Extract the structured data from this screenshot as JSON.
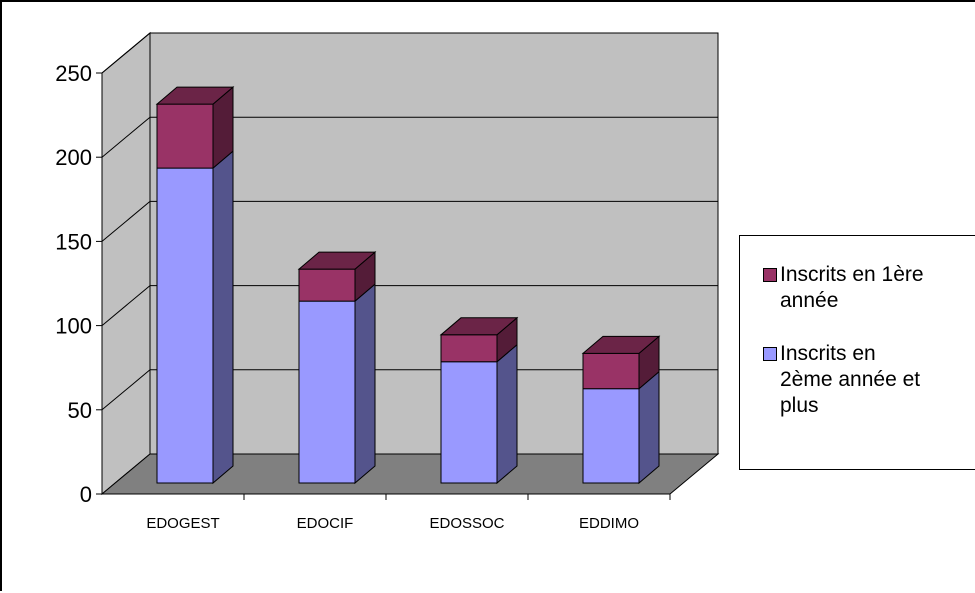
{
  "chart_data": {
    "type": "bar",
    "stacked": true,
    "three_d": true,
    "categories": [
      "EDOGEST",
      "EDOCIF",
      "EDOSSOC",
      "EDDIMO"
    ],
    "series": [
      {
        "name": "Inscrits en 2ème année et plus",
        "values": [
          187,
          108,
          72,
          56
        ],
        "color": "#9999FF"
      },
      {
        "name": "Inscrits en 1ère année",
        "values": [
          38,
          19,
          16,
          21
        ],
        "color": "#993366"
      }
    ],
    "y_ticks": [
      "0",
      "50",
      "100",
      "150",
      "200",
      "250"
    ],
    "ylim": [
      0,
      250
    ],
    "grid": true,
    "wall_color": "#C0C0C0",
    "floor_color": "#808080",
    "legend_position": "right"
  },
  "legend": {
    "items": [
      {
        "lines": [
          "Inscrits en 1ère",
          "année"
        ]
      },
      {
        "lines": [
          "Inscrits en",
          "2ème année et",
          "plus"
        ]
      }
    ]
  }
}
